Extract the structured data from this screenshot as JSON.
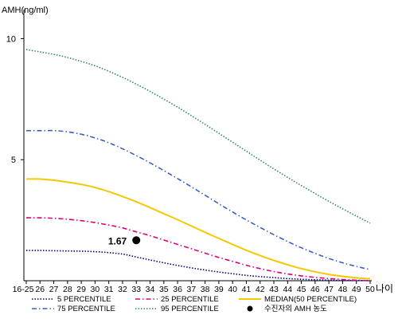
{
  "chart_data": {
    "type": "line",
    "title": "",
    "ylabel": "AMH(ng/ml)",
    "xlabel": "나이",
    "ylim": [
      0,
      11.2
    ],
    "yticks": [
      5,
      10
    ],
    "categories": [
      "16-25",
      "26",
      "27",
      "28",
      "29",
      "30",
      "31",
      "32",
      "33",
      "34",
      "35",
      "36",
      "37",
      "38",
      "39",
      "40",
      "41",
      "42",
      "43",
      "44",
      "45",
      "46",
      "47",
      "48",
      "49",
      "50"
    ],
    "series": [
      {
        "name": "5 PERCENTILE",
        "color": "#000080",
        "dash": "dotted",
        "values": [
          1.25,
          1.25,
          1.24,
          1.23,
          1.22,
          1.2,
          1.16,
          1.1,
          0.98,
          0.86,
          0.74,
          0.63,
          0.53,
          0.44,
          0.36,
          0.29,
          0.22,
          0.17,
          0.13,
          0.09,
          0.06,
          0.04,
          0.02,
          0.01,
          0.01,
          0.0
        ]
      },
      {
        "name": "25 PERCENTILE",
        "color": "#e0007a",
        "dash": "dashdot",
        "values": [
          2.6,
          2.6,
          2.58,
          2.54,
          2.48,
          2.4,
          2.3,
          2.18,
          2.02,
          1.86,
          1.68,
          1.5,
          1.32,
          1.14,
          0.96,
          0.8,
          0.64,
          0.5,
          0.38,
          0.28,
          0.2,
          0.14,
          0.09,
          0.05,
          0.02,
          0.0
        ]
      },
      {
        "name": "MEDIAN(50 PERCENTILE)",
        "color": "#f5c800",
        "dash": "solid",
        "values": [
          4.2,
          4.2,
          4.15,
          4.07,
          3.98,
          3.85,
          3.68,
          3.48,
          3.26,
          3.02,
          2.77,
          2.52,
          2.26,
          2.0,
          1.75,
          1.5,
          1.26,
          1.04,
          0.84,
          0.66,
          0.5,
          0.37,
          0.26,
          0.18,
          0.12,
          0.08
        ]
      },
      {
        "name": "75 PERCENTILE",
        "color": "#3c5fc8",
        "dash": "dashdot",
        "values": [
          6.2,
          6.2,
          6.2,
          6.15,
          6.05,
          5.9,
          5.7,
          5.45,
          5.17,
          4.87,
          4.55,
          4.22,
          3.88,
          3.53,
          3.18,
          2.84,
          2.51,
          2.2,
          1.9,
          1.62,
          1.36,
          1.13,
          0.92,
          0.74,
          0.59,
          0.46
        ]
      },
      {
        "name": "95 PERCENTILE",
        "color": "#2e8b57",
        "dash": "dotted",
        "values": [
          9.55,
          9.45,
          9.35,
          9.22,
          9.06,
          8.88,
          8.65,
          8.4,
          8.12,
          7.82,
          7.5,
          7.17,
          6.82,
          6.46,
          6.09,
          5.72,
          5.35,
          4.98,
          4.62,
          4.27,
          3.93,
          3.6,
          3.28,
          2.97,
          2.67,
          2.38
        ]
      }
    ],
    "marker": {
      "label": "수진자의 AMH 농도",
      "value_label": "1.67",
      "x": "33",
      "y": 1.67,
      "color": "#000000"
    },
    "legend_position": "bottom",
    "grid": false
  }
}
